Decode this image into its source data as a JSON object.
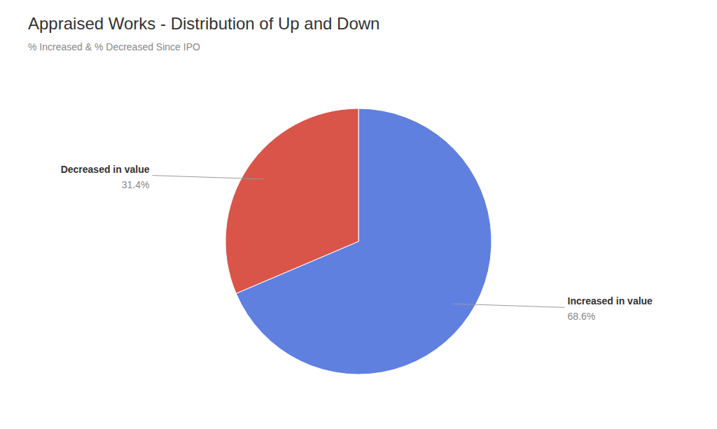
{
  "chart_data": {
    "type": "pie",
    "title": "Appraised Works - Distribution of Up and Down",
    "subtitle": "% Increased & % Decreased Since IPO",
    "categories": [
      "Increased in value",
      "Decreased in value"
    ],
    "values": [
      68.6,
      31.4
    ],
    "value_labels": [
      "68.6%",
      "31.4%"
    ],
    "colors": [
      "#6080e0",
      "#d9554a"
    ],
    "data_labels": true
  }
}
